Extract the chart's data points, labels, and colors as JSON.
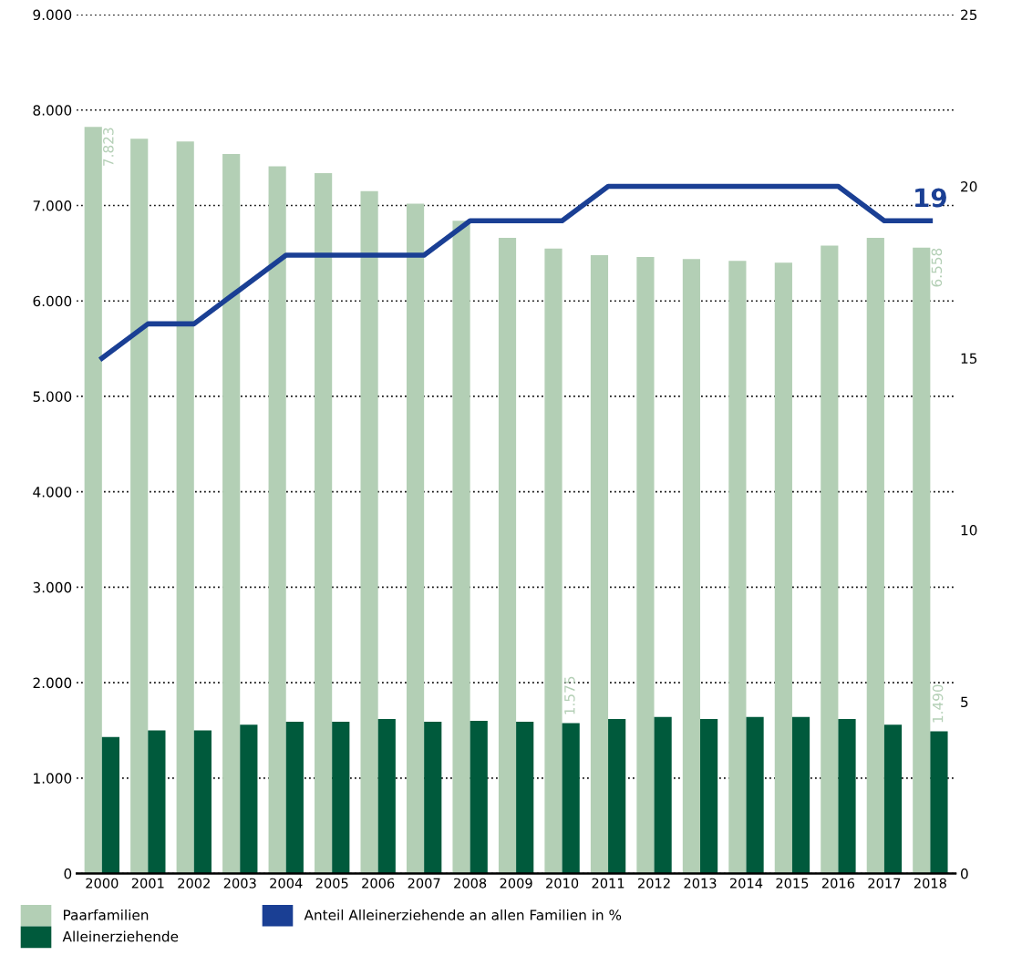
{
  "chart_data": {
    "type": "bar",
    "categories": [
      "2000",
      "2001",
      "2002",
      "2003",
      "2004",
      "2005",
      "2006",
      "2007",
      "2008",
      "2009",
      "2010",
      "2011",
      "2012",
      "2013",
      "2014",
      "2015",
      "2016",
      "2017",
      "2018"
    ],
    "series": [
      {
        "name": "Paarfamilien",
        "color": "#b3cfb5",
        "values": [
          7823,
          7700,
          7670,
          7540,
          7410,
          7340,
          7150,
          7020,
          6840,
          6660,
          6550,
          6480,
          6460,
          6440,
          6420,
          6400,
          6580,
          6660,
          6558
        ],
        "value_labels": [
          "7.823",
          null,
          null,
          null,
          null,
          null,
          null,
          null,
          null,
          null,
          null,
          null,
          null,
          null,
          null,
          null,
          null,
          null,
          "6.558"
        ]
      },
      {
        "name": "Alleinerziehende",
        "color": "#005a3c",
        "values": [
          1430,
          1500,
          1500,
          1560,
          1590,
          1590,
          1620,
          1590,
          1600,
          1590,
          1575,
          1620,
          1640,
          1620,
          1640,
          1640,
          1620,
          1560,
          1490
        ],
        "value_labels": [
          null,
          null,
          null,
          null,
          null,
          null,
          null,
          null,
          null,
          null,
          "1.575",
          null,
          null,
          null,
          null,
          null,
          null,
          null,
          "1.490"
        ]
      },
      {
        "name": "Anteil Alleinerziehende an allen Familien in %",
        "type": "line",
        "axis": "y2",
        "color": "#1a3f94",
        "values": [
          15,
          16,
          16,
          17,
          18,
          18,
          18,
          18,
          19,
          19,
          19,
          20,
          20,
          20,
          20,
          20,
          20,
          19,
          19
        ],
        "value_labels": [
          null,
          null,
          null,
          null,
          null,
          null,
          null,
          null,
          null,
          null,
          null,
          null,
          null,
          null,
          null,
          null,
          null,
          null,
          "19"
        ]
      }
    ],
    "ylim": [
      0,
      9000
    ],
    "yticks": [
      {
        "value": 0,
        "label": "0"
      },
      {
        "value": 1000,
        "label": "1.000"
      },
      {
        "value": 2000,
        "label": "2.000"
      },
      {
        "value": 3000,
        "label": "3.000"
      },
      {
        "value": 4000,
        "label": "4.000"
      },
      {
        "value": 5000,
        "label": "5.000"
      },
      {
        "value": 6000,
        "label": "6.000"
      },
      {
        "value": 7000,
        "label": "7.000"
      },
      {
        "value": 8000,
        "label": "8.000"
      },
      {
        "value": 9000,
        "label": "9.000"
      }
    ],
    "y2lim": [
      0,
      25
    ],
    "y2ticks": [
      0,
      5,
      10,
      15,
      20,
      25
    ],
    "grid": "y",
    "legend": "bottom",
    "marker": "none",
    "line_style": "solid"
  }
}
